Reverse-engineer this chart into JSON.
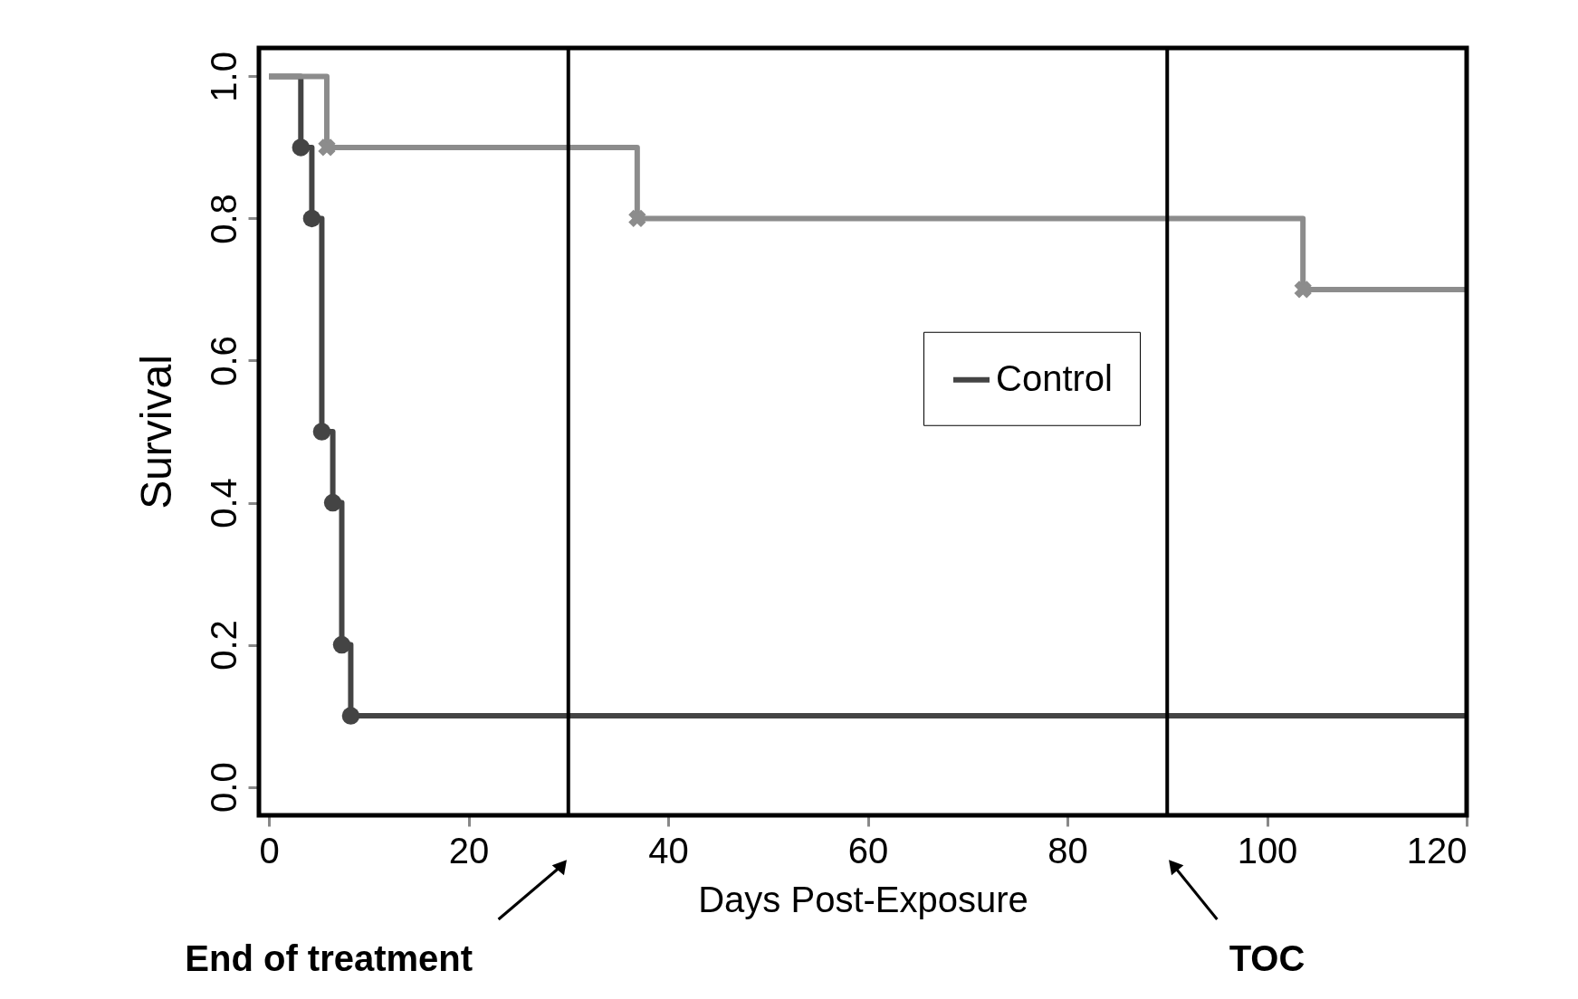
{
  "chart_data": {
    "type": "step",
    "xlabel": "Days Post-Exposure",
    "ylabel": "Survival",
    "xlim": [
      -1,
      120
    ],
    "ylim": [
      -0.04,
      1.04
    ],
    "xticks": [
      0,
      20,
      40,
      60,
      80,
      100,
      120
    ],
    "yticks": [
      {
        "value": 0,
        "label": "0.0"
      },
      {
        "value": 0.2,
        "label": "0.2"
      },
      {
        "value": 0.4,
        "label": "0.4"
      },
      {
        "value": 0.6,
        "label": "0.6"
      },
      {
        "value": 0.8,
        "label": "0.8"
      },
      {
        "value": 1,
        "label": "1.0"
      }
    ],
    "grid": false,
    "legend": "right",
    "line_style": "solid",
    "series": [
      {
        "name": "Control",
        "color": "#444444",
        "marker": "circle",
        "x": [
          0,
          3.2,
          4.3,
          5.3,
          6.4,
          7.3,
          8.2,
          120
        ],
        "values": [
          1,
          0.9,
          0.8,
          0.5,
          0.4,
          0.2,
          0.1,
          0.1
        ]
      },
      {
        "color": "#8c8c8c",
        "marker": "cross",
        "x": [
          0,
          5.8,
          36.9,
          103.6,
          120
        ],
        "values": [
          1,
          0.9,
          0.8,
          0.7,
          0.7
        ]
      }
    ],
    "ref_lines": [
      {
        "axis": "x",
        "value": 30,
        "color": "#000000"
      },
      {
        "axis": "x",
        "value": 90,
        "color": "#000000"
      }
    ],
    "annotations": [
      "End of treatment",
      "TOC"
    ]
  }
}
